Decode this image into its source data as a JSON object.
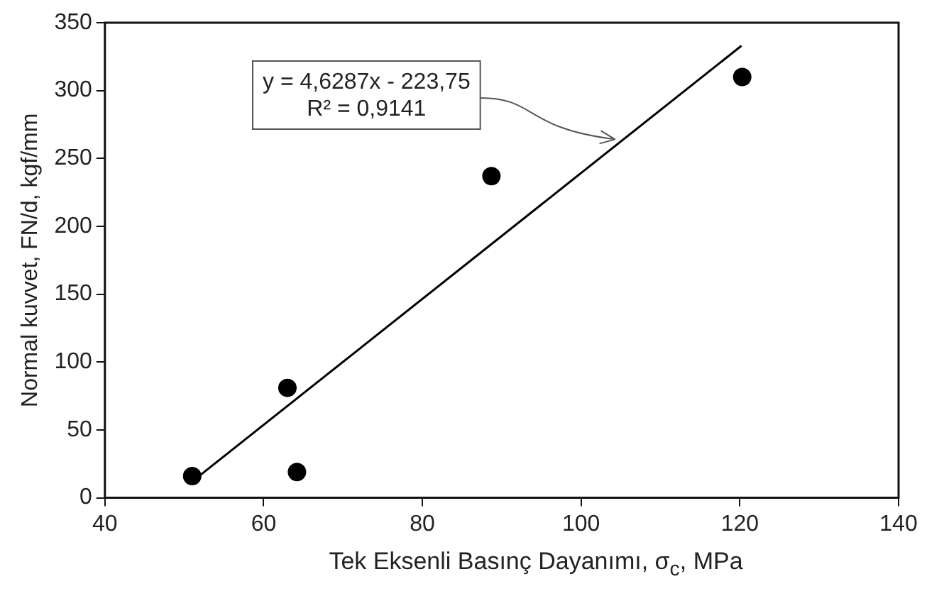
{
  "chart_data": {
    "type": "scatter",
    "xlabel": "Tek Eksenli Basınç Dayanımı, σ$_{c}$, MPa",
    "ylabel": "Normal kuvvet, FN/d, kgf/mm",
    "x": [
      51,
      63,
      64.2,
      88.7,
      120.3
    ],
    "values": [
      16,
      81,
      19,
      237,
      310
    ],
    "color": "#000000",
    "marker": "circle",
    "series": [
      {
        "type": "line",
        "x": [
          51,
          120.2
        ],
        "values": [
          12,
          333
        ],
        "color": "#000000",
        "line_style": "solid",
        "marker": "none"
      }
    ],
    "annotations": [
      {
        "text": "y = 4,6287x - 223,75\nR² = 0,9141",
        "x": 105,
        "y": 262
      }
    ],
    "xlim": [
      40,
      140
    ],
    "xticks": [
      40,
      60,
      80,
      100,
      120,
      140
    ],
    "ylim": [
      0,
      350
    ],
    "yticks": [
      0,
      50,
      100,
      150,
      200,
      250,
      300,
      350
    ],
    "grid": false,
    "legend": false
  }
}
